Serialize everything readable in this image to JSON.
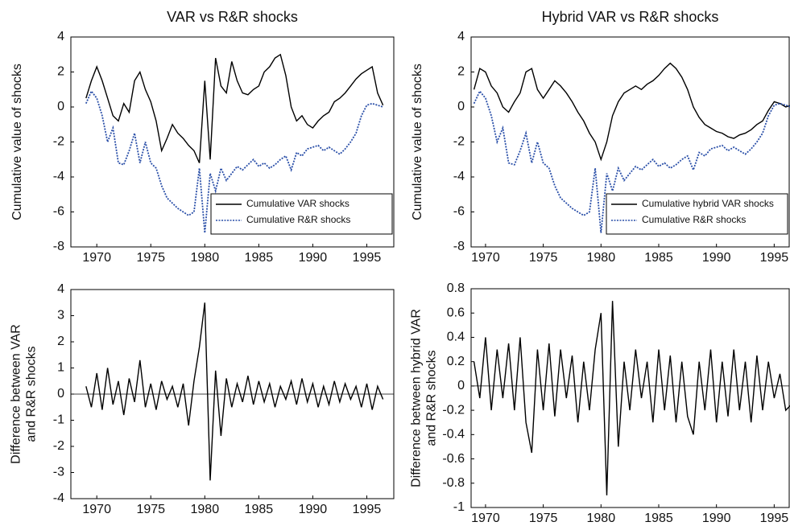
{
  "chart_data": [
    {
      "type": "line",
      "title": "VAR vs R&R shocks",
      "ylabel": "Cumulative value of shocks",
      "x": [
        1969,
        1969.5,
        1970,
        1970.5,
        1971,
        1971.5,
        1972,
        1972.5,
        1973,
        1973.5,
        1974,
        1974.5,
        1975,
        1975.5,
        1976,
        1976.5,
        1977,
        1977.5,
        1978,
        1978.5,
        1979,
        1979.5,
        1980,
        1980.5,
        1981,
        1981.5,
        1982,
        1982.5,
        1983,
        1983.5,
        1984,
        1984.5,
        1985,
        1985.5,
        1986,
        1986.5,
        1987,
        1987.5,
        1988,
        1988.5,
        1989,
        1989.5,
        1990,
        1990.5,
        1991,
        1991.5,
        1992,
        1992.5,
        1993,
        1993.5,
        1994,
        1994.5,
        1995,
        1995.5,
        1996,
        1996.5
      ],
      "series": [
        {
          "name": "Cumulative VAR shocks",
          "color": "#000000",
          "style": "solid",
          "values": [
            0.5,
            1.5,
            2.3,
            1.5,
            0.5,
            -0.5,
            -0.8,
            0.2,
            -0.3,
            1.5,
            2.0,
            1.0,
            0.3,
            -0.8,
            -2.5,
            -1.8,
            -1.0,
            -1.5,
            -1.8,
            -2.2,
            -2.5,
            -3.2,
            1.5,
            -3.0,
            2.8,
            1.2,
            0.8,
            2.6,
            1.5,
            0.8,
            0.7,
            1.0,
            1.2,
            2.0,
            2.3,
            2.8,
            3.0,
            1.8,
            0.0,
            -0.8,
            -0.5,
            -1.0,
            -1.2,
            -0.8,
            -0.5,
            -0.3,
            0.3,
            0.5,
            0.8,
            1.2,
            1.6,
            1.9,
            2.1,
            2.3,
            0.8,
            0.1
          ]
        },
        {
          "name": "Cumulative R&R shocks",
          "color": "#2a4fa8",
          "style": "dotted",
          "values": [
            0.2,
            0.9,
            0.5,
            -0.5,
            -2.0,
            -1.2,
            -3.2,
            -3.3,
            -2.5,
            -1.5,
            -3.2,
            -2.0,
            -3.2,
            -3.5,
            -4.5,
            -5.2,
            -5.5,
            -5.8,
            -6.0,
            -6.2,
            -6.0,
            -3.5,
            -7.2,
            -3.8,
            -4.8,
            -3.5,
            -4.2,
            -3.8,
            -3.4,
            -3.6,
            -3.3,
            -3.0,
            -3.4,
            -3.2,
            -3.5,
            -3.3,
            -3.0,
            -2.8,
            -3.6,
            -2.6,
            -2.8,
            -2.4,
            -2.3,
            -2.2,
            -2.5,
            -2.3,
            -2.5,
            -2.7,
            -2.4,
            -2.0,
            -1.5,
            -0.5,
            0.1,
            0.2,
            0.1,
            0.0
          ]
        }
      ],
      "xlim": [
        1967.6,
        1997.5
      ],
      "ylim": [
        -8,
        4
      ],
      "xticks": [
        1970,
        1975,
        1980,
        1985,
        1990,
        1995
      ],
      "yticks": [
        -8,
        -6,
        -4,
        -2,
        0,
        2,
        4
      ],
      "legend": "lower right"
    },
    {
      "type": "line",
      "title": "Hybrid VAR vs R&R shocks",
      "ylabel": "Cumulative value of shocks",
      "x": [
        1969,
        1969.5,
        1970,
        1970.5,
        1971,
        1971.5,
        1972,
        1972.5,
        1973,
        1973.5,
        1974,
        1974.5,
        1975,
        1975.5,
        1976,
        1976.5,
        1977,
        1977.5,
        1978,
        1978.5,
        1979,
        1979.5,
        1980,
        1980.5,
        1981,
        1981.5,
        1982,
        1982.5,
        1983,
        1983.5,
        1984,
        1984.5,
        1985,
        1985.5,
        1986,
        1986.5,
        1987,
        1987.5,
        1988,
        1988.5,
        1989,
        1989.5,
        1990,
        1990.5,
        1991,
        1991.5,
        1992,
        1992.5,
        1993,
        1993.5,
        1994,
        1994.5,
        1995,
        1995.5,
        1996,
        1996.5
      ],
      "series": [
        {
          "name": "Cumulative hybrid VAR shocks",
          "color": "#000000",
          "style": "solid",
          "values": [
            1.0,
            2.2,
            2.0,
            1.2,
            0.8,
            0.0,
            -0.3,
            0.3,
            0.8,
            2.0,
            2.2,
            1.0,
            0.5,
            1.0,
            1.5,
            1.2,
            0.8,
            0.3,
            -0.3,
            -0.8,
            -1.5,
            -2.0,
            -3.0,
            -2.0,
            -0.5,
            0.3,
            0.8,
            1.0,
            1.2,
            1.0,
            1.3,
            1.5,
            1.8,
            2.2,
            2.5,
            2.2,
            1.7,
            1.0,
            0.0,
            -0.6,
            -1.0,
            -1.2,
            -1.4,
            -1.5,
            -1.7,
            -1.8,
            -1.6,
            -1.5,
            -1.3,
            -1.0,
            -0.8,
            -0.2,
            0.3,
            0.2,
            0.0,
            0.1
          ]
        },
        {
          "name": "Cumulative R&R shocks",
          "color": "#2a4fa8",
          "style": "dotted",
          "values": [
            0.2,
            0.9,
            0.5,
            -0.5,
            -2.0,
            -1.2,
            -3.2,
            -3.3,
            -2.5,
            -1.5,
            -3.2,
            -2.0,
            -3.2,
            -3.5,
            -4.5,
            -5.2,
            -5.5,
            -5.8,
            -6.0,
            -6.2,
            -6.0,
            -3.5,
            -7.2,
            -3.8,
            -4.8,
            -3.5,
            -4.2,
            -3.8,
            -3.4,
            -3.6,
            -3.3,
            -3.0,
            -3.4,
            -3.2,
            -3.5,
            -3.3,
            -3.0,
            -2.8,
            -3.6,
            -2.6,
            -2.8,
            -2.4,
            -2.3,
            -2.2,
            -2.5,
            -2.3,
            -2.5,
            -2.7,
            -2.4,
            -2.0,
            -1.5,
            -0.5,
            0.1,
            0.2,
            0.1,
            0.0
          ]
        }
      ],
      "xlim": [
        1968.75,
        1996.3
      ],
      "ylim": [
        -8,
        4
      ],
      "xticks": [
        1970,
        1975,
        1980,
        1985,
        1990,
        1995
      ],
      "yticks": [
        -8,
        -6,
        -4,
        -2,
        0,
        2,
        4
      ],
      "legend": "lower right"
    },
    {
      "type": "line",
      "ylabel": [
        "Difference between VAR",
        "and R&R shocks"
      ],
      "x": [
        1969,
        1969.5,
        1970,
        1970.5,
        1971,
        1971.5,
        1972,
        1972.5,
        1973,
        1973.5,
        1974,
        1974.5,
        1975,
        1975.5,
        1976,
        1976.5,
        1977,
        1977.5,
        1978,
        1978.5,
        1979,
        1979.5,
        1980,
        1980.5,
        1981,
        1981.5,
        1982,
        1982.5,
        1983,
        1983.5,
        1984,
        1984.5,
        1985,
        1985.5,
        1986,
        1986.5,
        1987,
        1987.5,
        1988,
        1988.5,
        1989,
        1989.5,
        1990,
        1990.5,
        1991,
        1991.5,
        1992,
        1992.5,
        1993,
        1993.5,
        1994,
        1994.5,
        1995,
        1995.5,
        1996,
        1996.5
      ],
      "series": [
        {
          "color": "#000000",
          "style": "solid",
          "values": [
            0.3,
            -0.5,
            0.8,
            -0.6,
            1.0,
            -0.4,
            0.5,
            -0.8,
            0.6,
            -0.3,
            1.3,
            -0.5,
            0.4,
            -0.6,
            0.5,
            -0.2,
            0.3,
            -0.5,
            0.4,
            -1.2,
            0.5,
            1.8,
            3.5,
            -3.3,
            0.9,
            -1.6,
            0.6,
            -0.5,
            0.4,
            -0.3,
            0.7,
            -0.4,
            0.5,
            -0.3,
            0.4,
            -0.5,
            0.3,
            -0.2,
            0.5,
            -0.4,
            0.6,
            -0.3,
            0.4,
            -0.5,
            0.3,
            -0.4,
            0.5,
            -0.3,
            0.4,
            -0.2,
            0.3,
            -0.5,
            0.4,
            -0.6,
            0.3,
            -0.2
          ]
        }
      ],
      "hline": 0,
      "xlim": [
        1967.6,
        1997.5
      ],
      "ylim": [
        -4,
        4
      ],
      "xticks": [
        1970,
        1975,
        1980,
        1985,
        1990,
        1995
      ],
      "yticks": [
        -4,
        -3,
        -2,
        -1,
        0,
        1,
        2,
        3,
        4
      ]
    },
    {
      "type": "line",
      "ylabel": [
        "Difference between hybrid VAR",
        "and R&R shocks"
      ],
      "x": [
        1969,
        1969.5,
        1970,
        1970.5,
        1971,
        1971.5,
        1972,
        1972.5,
        1973,
        1973.5,
        1974,
        1974.5,
        1975,
        1975.5,
        1976,
        1976.5,
        1977,
        1977.5,
        1978,
        1978.5,
        1979,
        1979.5,
        1980,
        1980.5,
        1981,
        1981.5,
        1982,
        1982.5,
        1983,
        1983.5,
        1984,
        1984.5,
        1985,
        1985.5,
        1986,
        1986.5,
        1987,
        1987.5,
        1988,
        1988.5,
        1989,
        1989.5,
        1990,
        1990.5,
        1991,
        1991.5,
        1992,
        1992.5,
        1993,
        1993.5,
        1994,
        1994.5,
        1995,
        1995.5,
        1996,
        1996.5
      ],
      "series": [
        {
          "color": "#000000",
          "style": "solid",
          "values": [
            0.2,
            -0.1,
            0.4,
            -0.2,
            0.3,
            -0.1,
            0.35,
            -0.2,
            0.4,
            -0.3,
            -0.55,
            0.3,
            -0.2,
            0.35,
            -0.25,
            0.3,
            -0.1,
            0.25,
            -0.3,
            0.2,
            -0.2,
            0.3,
            0.6,
            -0.9,
            0.7,
            -0.5,
            0.2,
            -0.2,
            0.3,
            -0.1,
            0.2,
            -0.3,
            0.3,
            -0.2,
            0.25,
            -0.3,
            0.2,
            -0.25,
            -0.4,
            0.2,
            -0.2,
            0.3,
            -0.3,
            0.2,
            -0.25,
            0.3,
            -0.2,
            0.2,
            -0.3,
            0.25,
            -0.2,
            0.2,
            -0.1,
            0.1,
            -0.2,
            -0.15
          ]
        }
      ],
      "hline": 0,
      "xlim": [
        1968.75,
        1996.3
      ],
      "ylim": [
        -1,
        0.8
      ],
      "xticks": [
        1970,
        1975,
        1980,
        1985,
        1990,
        1995
      ],
      "yticks": [
        -1,
        -0.8,
        -0.6,
        -0.4,
        -0.2,
        0,
        0.2,
        0.4,
        0.6,
        0.8
      ]
    }
  ]
}
